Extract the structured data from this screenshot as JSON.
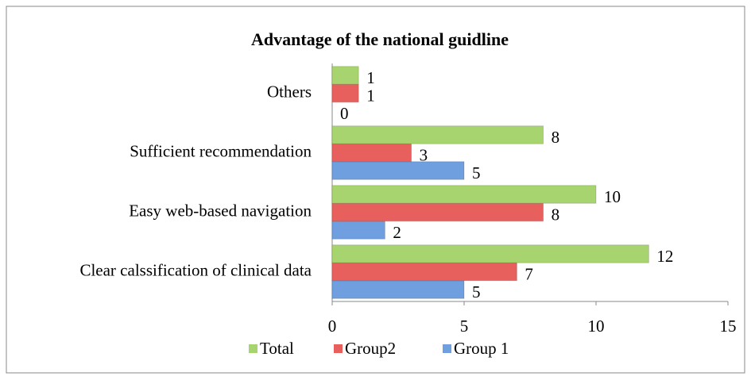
{
  "chart_data": {
    "type": "bar",
    "orientation": "horizontal",
    "title": "Advantage of the national guidline",
    "categories": [
      "Clear calssification of clinical data",
      "Easy web-based navigation",
      "Sufficient recommendation",
      "Others"
    ],
    "series": [
      {
        "name": "Group 1",
        "color": "#6f9fdf",
        "values": [
          5,
          2,
          5,
          0
        ]
      },
      {
        "name": "Group2",
        "color": "#e8605e",
        "values": [
          7,
          8,
          3,
          1
        ]
      },
      {
        "name": "Total",
        "color": "#a8d46f",
        "values": [
          12,
          10,
          8,
          1
        ]
      }
    ],
    "xlim": [
      0,
      15
    ],
    "xticks": [
      0,
      5,
      10,
      15
    ],
    "legend": "bottom"
  }
}
